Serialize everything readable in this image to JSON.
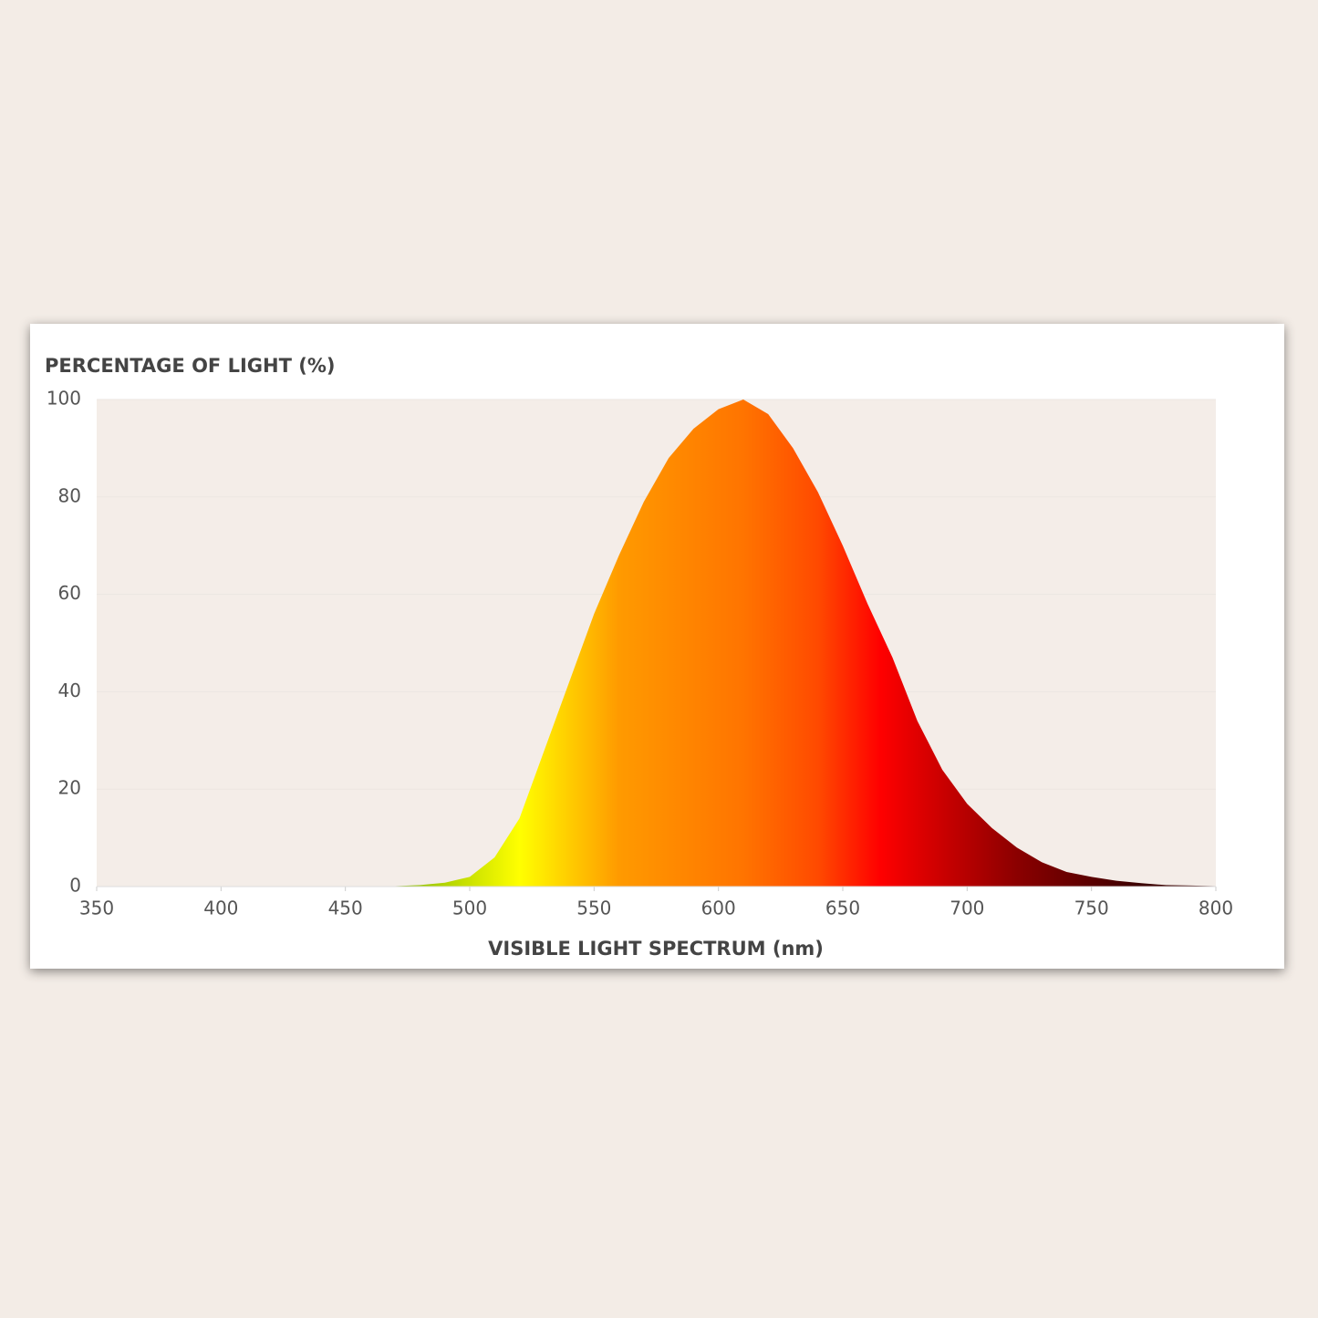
{
  "chart_data": {
    "type": "area",
    "y_axis_title": "PERCENTAGE OF LIGHT (%)",
    "x_axis_title": "VISIBLE LIGHT SPECTRUM (nm)",
    "x": [
      350,
      360,
      370,
      380,
      390,
      400,
      410,
      420,
      430,
      440,
      450,
      460,
      470,
      480,
      490,
      500,
      510,
      520,
      530,
      540,
      550,
      560,
      570,
      580,
      590,
      600,
      610,
      620,
      630,
      640,
      650,
      660,
      670,
      680,
      690,
      700,
      710,
      720,
      730,
      740,
      750,
      760,
      770,
      780,
      790,
      800
    ],
    "values": [
      0,
      0,
      0,
      0,
      0,
      0,
      0,
      0,
      0,
      0,
      0,
      0,
      0.1,
      0.3,
      0.8,
      2,
      6,
      14,
      28,
      42,
      56,
      68,
      79,
      88,
      94,
      98,
      100,
      97,
      90,
      81,
      70,
      58,
      47,
      34,
      24,
      17,
      12,
      8,
      5,
      3,
      2,
      1.2,
      0.7,
      0.3,
      0.2,
      0.1
    ],
    "xlim": [
      350,
      800
    ],
    "ylim": [
      0,
      100
    ],
    "xticks": [
      350,
      400,
      450,
      500,
      550,
      600,
      650,
      700,
      750,
      800
    ],
    "yticks": [
      0,
      20,
      40,
      60,
      80,
      100
    ],
    "grid": true,
    "gradient": [
      {
        "x": 470,
        "color": "#7fb800"
      },
      {
        "x": 520,
        "color": "#ffff00"
      },
      {
        "x": 560,
        "color": "#ff9a00"
      },
      {
        "x": 610,
        "color": "#ff7400"
      },
      {
        "x": 640,
        "color": "#ff4a00"
      },
      {
        "x": 665,
        "color": "#ff0000"
      },
      {
        "x": 720,
        "color": "#8b0000"
      },
      {
        "x": 770,
        "color": "#3a0000"
      }
    ]
  }
}
